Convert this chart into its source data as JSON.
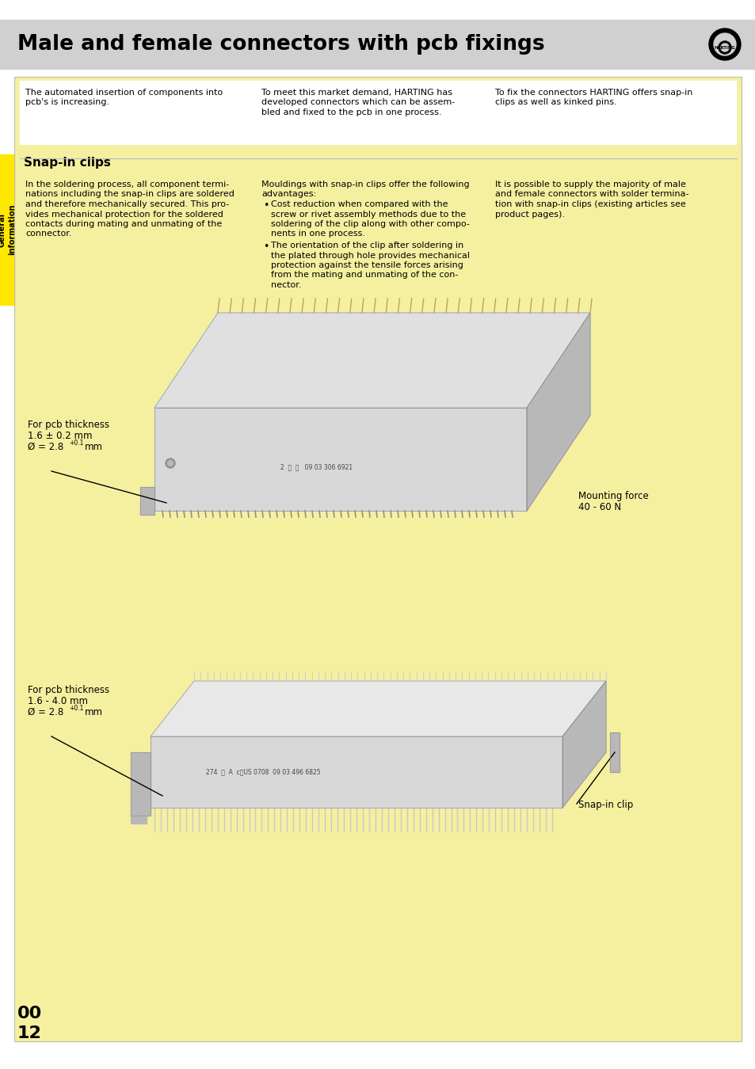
{
  "title": "Male and female connectors with pcb fixings",
  "bg_color": "#ffffff",
  "yellow_bg": "#F5F0A0",
  "header_bg": "#d0d0d0",
  "sidebar_color": "#FFE800",
  "sidebar_text": "General\ninformation",
  "top_text_col1": "The automated insertion of components into\npcb's is increasing.",
  "top_text_col2": "To meet this market demand, HARTING has\ndeveloped connectors which can be assem-\nbled and fixed to the pcb in one process.",
  "top_text_col3": "To fix the connectors HARTING offers snap-in\nclips as well as kinked pins.",
  "section_title": "Snap-in clips",
  "body_col1_lines": [
    "In the soldering process, all component termi-",
    "nations including the snap-in clips are soldered",
    "and therefore mechanically secured. This pro-",
    "vides mechanical protection for the soldered",
    "contacts during mating and unmating of the",
    "connector."
  ],
  "body_col2_intro_lines": [
    "Mouldings with snap-in clips offer the following",
    "advantages:"
  ],
  "body_col2_bullet1_lines": [
    "Cost reduction when compared with the",
    "screw or rivet assembly methods due to the",
    "soldering of the clip along with other compo-",
    "nents in one process."
  ],
  "body_col2_bullet2_lines": [
    "The orientation of the clip after soldering in",
    "the plated through hole provides mechanical",
    "protection against the tensile forces arising",
    "from the mating and unmating of the con-",
    "nector."
  ],
  "body_col3_lines": [
    "It is possible to supply the majority of male",
    "and female connectors with solder termina-",
    "tion with snap-in clips (existing articles see",
    "product pages)."
  ],
  "connector1_label1": "For pcb thickness",
  "connector1_label2": "1.6 ± 0.2 mm",
  "connector1_label3": "Ø = 2.8 +0.1 mm",
  "connector1_force_line1": "Mounting force",
  "connector1_force_line2": "40 - 60 N",
  "connector2_label1": "For pcb thickness",
  "connector2_label2": "1.6 - 4.0 mm",
  "connector2_label3": "Ø = 2.8 +0.1 mm",
  "connector2_snapin": "Snap-in clip",
  "page_num1": "00",
  "page_num2": "12",
  "text_color": "#000000",
  "gray_light": "#d8d8d8",
  "gray_mid": "#b8b8b8",
  "gray_dark": "#909090",
  "gray_darker": "#707070"
}
